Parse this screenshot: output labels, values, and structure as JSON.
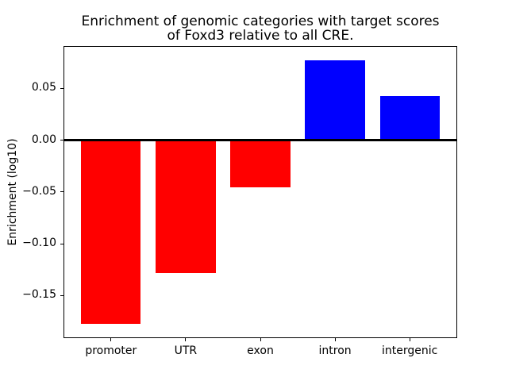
{
  "chart_data": {
    "type": "bar",
    "title": "Enrichment of genomic categories with target scores\nof Foxd3 relative to all CRE.",
    "xlabel": "",
    "ylabel": "Enrichment (log10)",
    "categories": [
      "promoter",
      "UTR",
      "exon",
      "intron",
      "intergenic"
    ],
    "values": [
      -0.178,
      -0.129,
      -0.046,
      0.077,
      0.042
    ],
    "bar_colors": [
      "#ff0000",
      "#ff0000",
      "#ff0000",
      "#0000ff",
      "#0000ff"
    ],
    "positive_color": "#0000ff",
    "negative_color": "#ff0000",
    "bar_width": 0.8,
    "xlim": [
      -0.625,
      4.625
    ],
    "ylim": [
      -0.1908,
      0.0898
    ],
    "yticks": [
      0.05,
      0.0,
      -0.05,
      -0.1,
      -0.15
    ],
    "ytick_labels": [
      "0.05",
      "0.00",
      "−0.05",
      "−0.10",
      "−0.15"
    ],
    "zero_line": true,
    "grid": false,
    "legend": "none",
    "axis_color": "#000000",
    "background_color": "#ffffff"
  }
}
